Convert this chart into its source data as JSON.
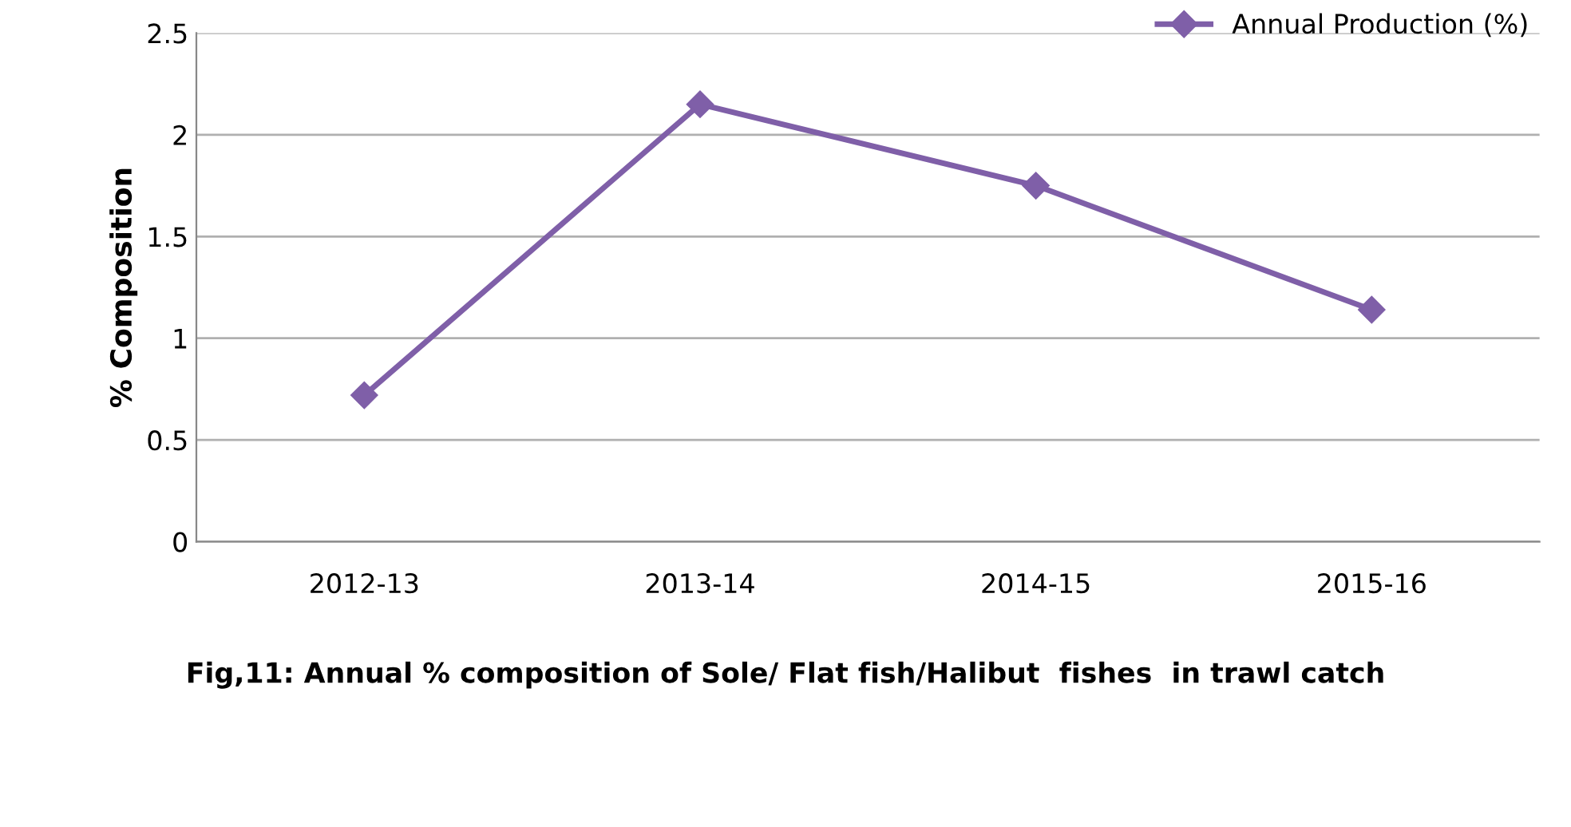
{
  "chart_data": {
    "type": "line",
    "title": "Fig,11: Annual % composition of Sole/ Flat fish/Halibut  fishes  in trawl catch",
    "ylabel": "% Composition",
    "categories": [
      "2012-13",
      "2013-14",
      "2014-15",
      "2015-16"
    ],
    "series": [
      {
        "name": "Annual Production (%)",
        "color": "#7f5fa8",
        "values": [
          0.72,
          2.15,
          1.75,
          1.14
        ]
      }
    ],
    "ylim": [
      0,
      2.5
    ],
    "yticks": [
      0,
      0.5,
      1,
      1.5,
      2,
      2.5
    ],
    "grid": "y",
    "legend": "top right",
    "marker": "diamond",
    "line_style": "solid"
  }
}
